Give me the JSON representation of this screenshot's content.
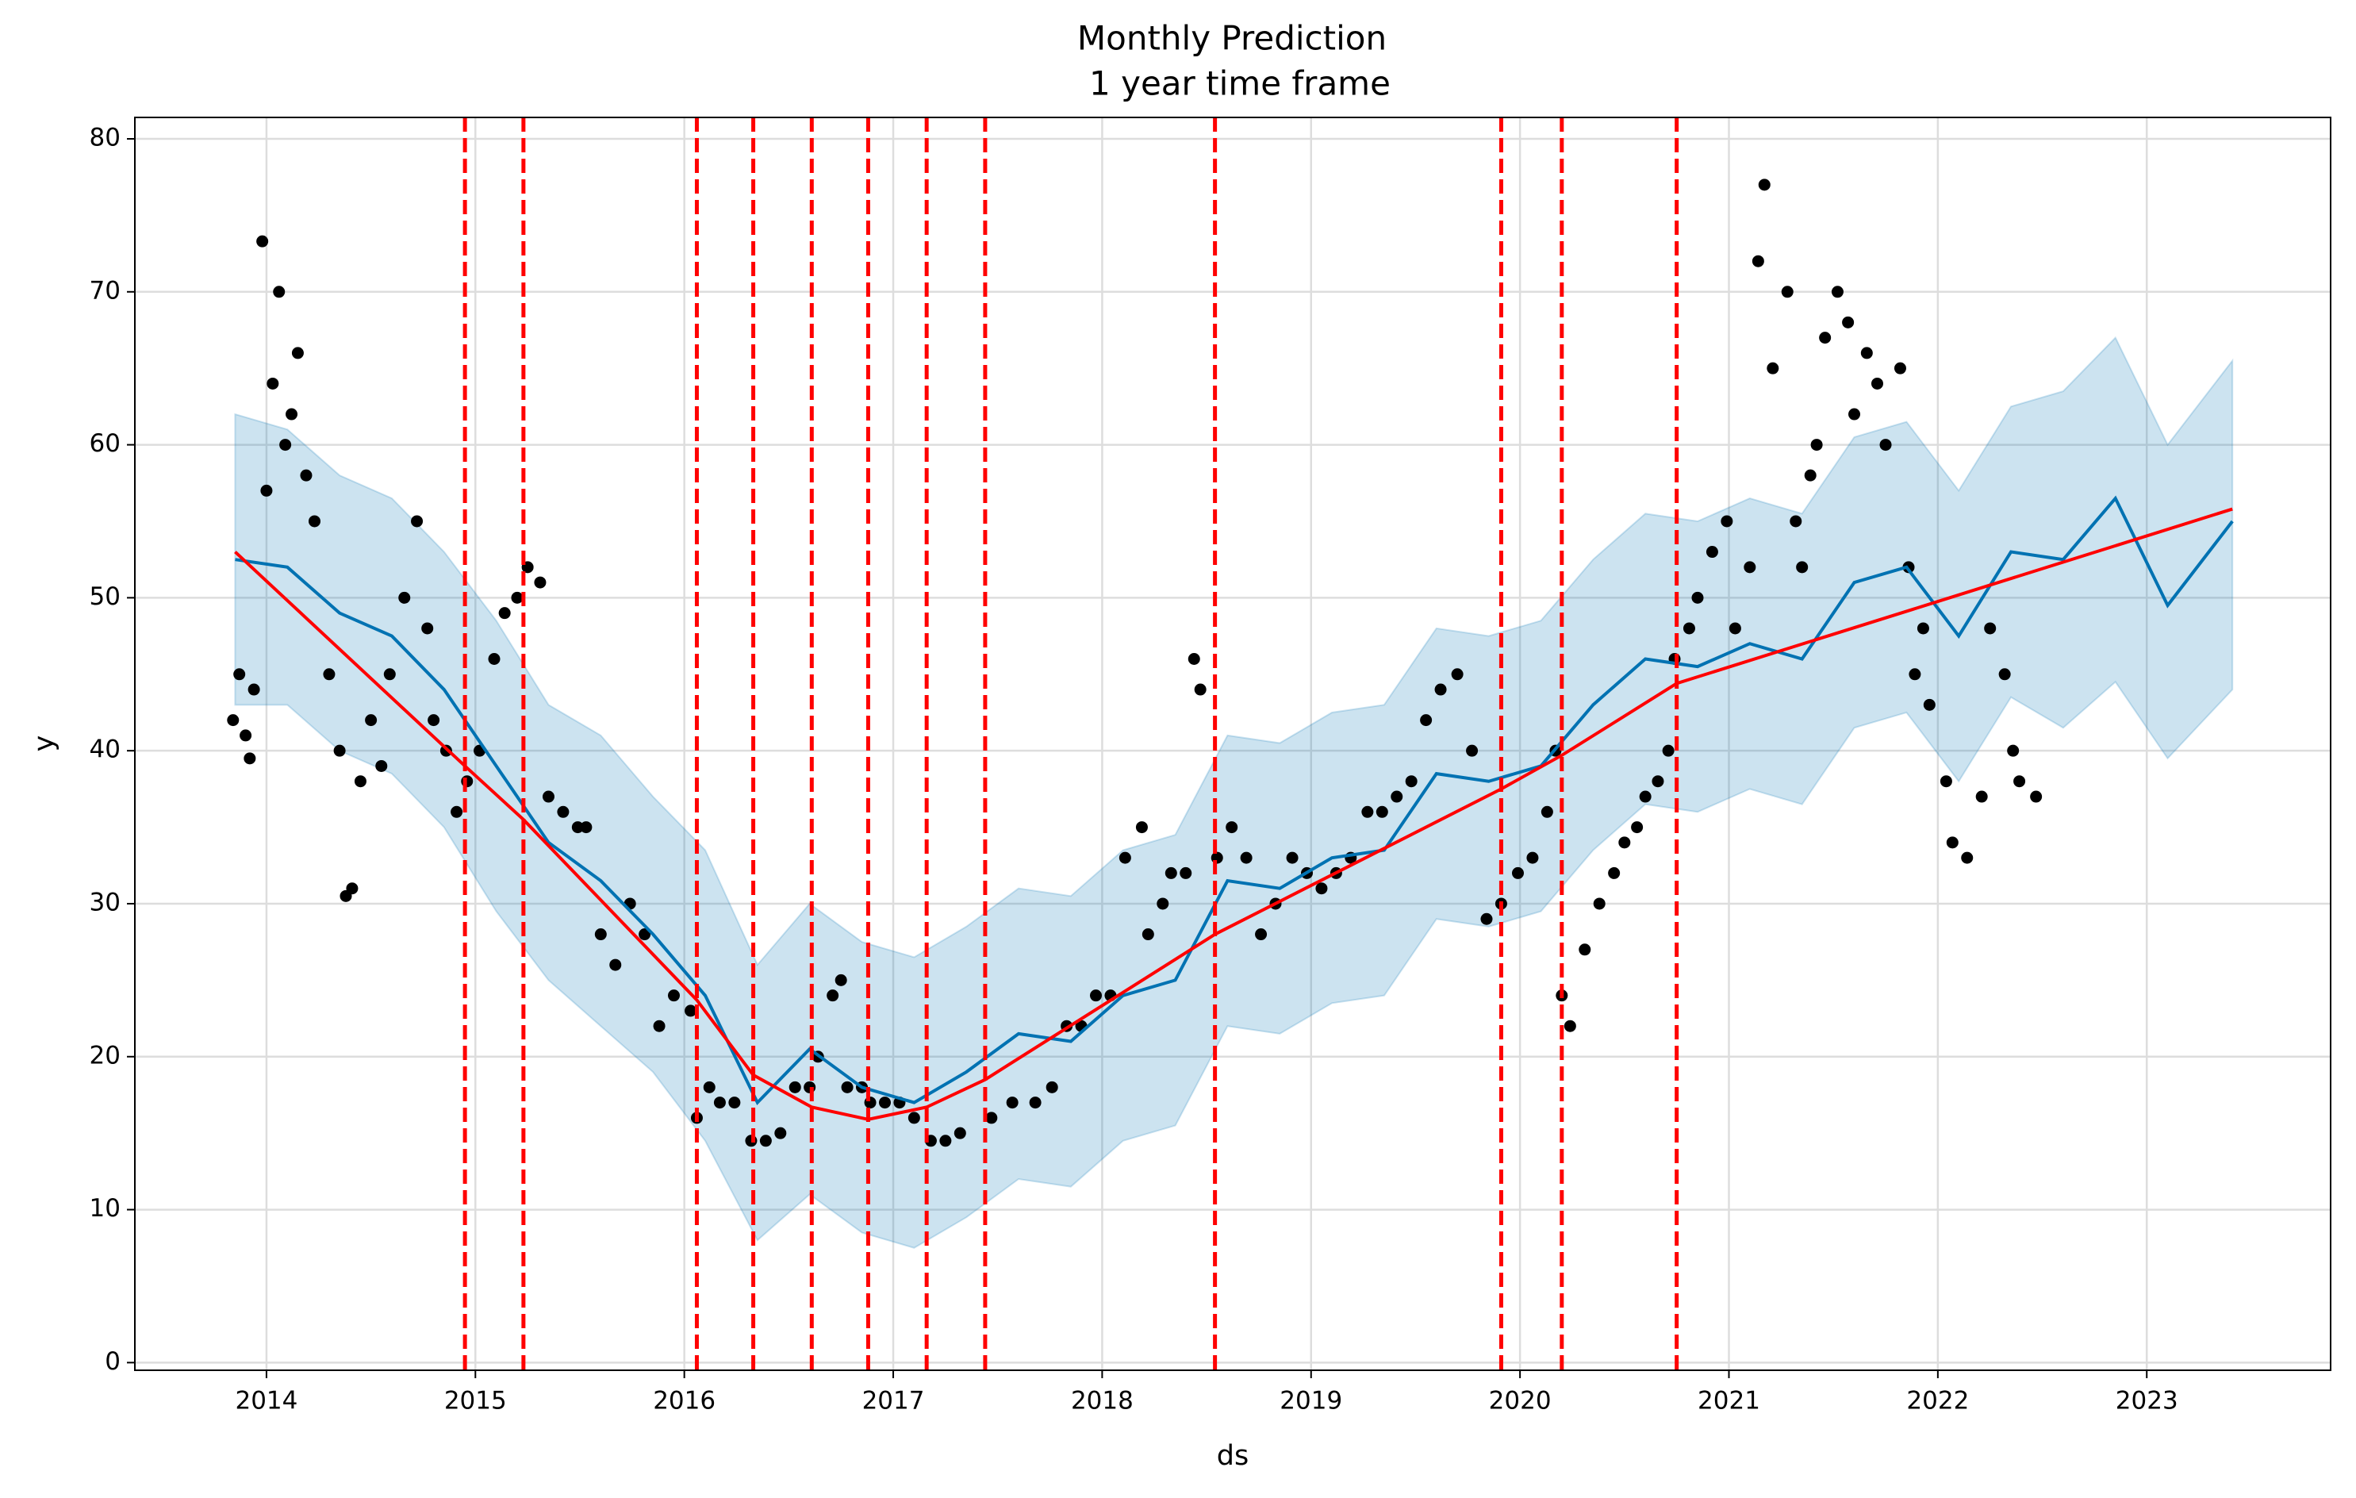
{
  "chart_data": {
    "type": "line",
    "title": "Monthly Prediction",
    "subtitle": "1 year time frame",
    "x_label": "ds",
    "y_label": "y",
    "xlim": [
      2013.37,
      2023.88
    ],
    "ylim": [
      -0.5,
      81.4
    ],
    "xticks": [
      2014,
      2015,
      2016,
      2017,
      2018,
      2019,
      2020,
      2021,
      2022,
      2023
    ],
    "yticks": [
      0,
      10,
      20,
      30,
      40,
      50,
      60,
      70,
      80
    ],
    "grid": true,
    "observed": {
      "color": "#000000",
      "x": [
        2013.84,
        2013.87,
        2013.9,
        2013.92,
        2013.94,
        2013.98,
        2014.0,
        2014.03,
        2014.06,
        2014.09,
        2014.12,
        2014.15,
        2014.19,
        2014.23,
        2014.3,
        2014.35,
        2014.38,
        2014.41,
        2014.45,
        2014.5,
        2014.55,
        2014.59,
        2014.66,
        2014.72,
        2014.77,
        2014.8,
        2014.86,
        2014.91,
        2014.96,
        2015.02,
        2015.09,
        2015.14,
        2015.2,
        2015.25,
        2015.31,
        2015.35,
        2015.42,
        2015.49,
        2015.53,
        2015.6,
        2015.67,
        2015.74,
        2015.81,
        2015.88,
        2015.95,
        2016.03,
        2016.06,
        2016.12,
        2016.17,
        2016.24,
        2016.32,
        2016.39,
        2016.46,
        2016.53,
        2016.6,
        2016.64,
        2016.71,
        2016.75,
        2016.78,
        2016.85,
        2016.89,
        2016.96,
        2017.03,
        2017.1,
        2017.18,
        2017.25,
        2017.32,
        2017.47,
        2017.57,
        2017.68,
        2017.76,
        2017.83,
        2017.9,
        2017.97,
        2018.04,
        2018.11,
        2018.19,
        2018.22,
        2018.29,
        2018.33,
        2018.4,
        2018.44,
        2018.47,
        2018.55,
        2018.62,
        2018.69,
        2018.76,
        2018.83,
        2018.91,
        2018.98,
        2019.05,
        2019.12,
        2019.19,
        2019.27,
        2019.34,
        2019.41,
        2019.48,
        2019.55,
        2019.62,
        2019.7,
        2019.77,
        2019.84,
        2019.91,
        2019.99,
        2020.06,
        2020.13,
        2020.17,
        2020.2,
        2020.24,
        2020.31,
        2020.38,
        2020.45,
        2020.5,
        2020.56,
        2020.6,
        2020.66,
        2020.71,
        2020.74,
        2020.81,
        2020.85,
        2020.92,
        2020.99,
        2021.03,
        2021.1,
        2021.14,
        2021.17,
        2021.21,
        2021.28,
        2021.32,
        2021.35,
        2021.39,
        2021.42,
        2021.46,
        2021.52,
        2021.57,
        2021.6,
        2021.66,
        2021.71,
        2021.75,
        2021.82,
        2021.86,
        2021.89,
        2021.93,
        2021.96,
        2022.04,
        2022.07,
        2022.14,
        2022.21,
        2022.25,
        2022.32,
        2022.36,
        2022.39,
        2022.47
      ],
      "values": [
        42,
        45,
        41,
        39.5,
        44,
        73.3,
        57,
        64,
        70,
        60,
        62,
        66,
        58,
        55,
        45,
        40,
        30.5,
        31,
        38,
        42,
        39,
        45,
        50,
        55,
        48,
        42,
        40,
        36,
        38,
        40,
        46,
        49,
        50,
        52,
        51,
        37,
        36,
        35,
        35,
        28,
        26,
        30,
        28,
        22,
        24,
        23,
        16,
        18,
        17,
        17,
        14.5,
        14.5,
        15,
        18,
        18,
        20,
        24,
        25,
        18,
        18,
        17,
        17,
        17,
        16,
        14.5,
        14.5,
        15,
        16,
        17,
        17,
        18,
        22,
        22,
        24,
        24,
        33,
        35,
        28,
        30,
        32,
        32,
        46,
        44,
        33,
        35,
        33,
        28,
        30,
        33,
        32,
        31,
        32,
        33,
        36,
        36,
        37,
        38,
        42,
        44,
        45,
        40,
        29,
        30,
        32,
        33,
        36,
        40,
        24,
        22,
        27,
        30,
        32,
        34,
        35,
        37,
        38,
        40,
        46,
        48,
        50,
        53,
        55,
        48,
        52,
        72,
        77,
        65,
        70,
        55,
        52,
        58,
        60,
        67,
        70,
        68,
        62,
        66,
        64,
        60,
        65,
        52,
        45,
        48,
        43,
        38,
        34,
        33,
        37,
        48,
        45,
        40,
        38,
        37
      ]
    },
    "forecast": {
      "color": "#0072B2",
      "x": [
        2013.85,
        2014.1,
        2014.35,
        2014.6,
        2014.85,
        2015.1,
        2015.35,
        2015.6,
        2015.85,
        2016.1,
        2016.35,
        2016.6,
        2016.85,
        2017.1,
        2017.35,
        2017.6,
        2017.85,
        2018.1,
        2018.35,
        2018.6,
        2018.85,
        2019.1,
        2019.35,
        2019.6,
        2019.85,
        2020.1,
        2020.35,
        2020.6,
        2020.85,
        2021.1,
        2021.35,
        2021.6,
        2021.85,
        2022.1,
        2022.35,
        2022.6,
        2022.85,
        2023.1,
        2023.41
      ],
      "values": [
        52.5,
        52,
        49,
        47.5,
        44,
        39,
        34,
        31.5,
        28,
        24,
        17,
        20.5,
        18,
        17,
        19,
        21.5,
        21,
        24,
        25,
        31.5,
        31,
        33,
        33.5,
        38.5,
        38,
        39,
        43,
        46,
        45.5,
        47,
        46,
        51,
        52,
        47.5,
        53,
        52.5,
        56.5,
        49.5,
        55
      ],
      "lower": [
        43,
        43,
        40,
        38.5,
        35,
        29.5,
        25,
        22,
        19,
        14.5,
        8,
        11,
        8.5,
        7.5,
        9.5,
        12,
        11.5,
        14.5,
        15.5,
        22,
        21.5,
        23.5,
        24,
        29,
        28.5,
        29.5,
        33.5,
        36.5,
        36,
        37.5,
        36.5,
        41.5,
        42.5,
        38,
        43.5,
        41.5,
        44.5,
        39.5,
        44
      ],
      "upper": [
        62,
        61,
        58,
        56.5,
        53,
        48.5,
        43,
        41,
        37,
        33.5,
        26,
        30,
        27.5,
        26.5,
        28.5,
        31,
        30.5,
        33.5,
        34.5,
        41,
        40.5,
        42.5,
        43,
        48,
        47.5,
        48.5,
        52.5,
        55.5,
        55,
        56.5,
        55.5,
        60.5,
        61.5,
        57,
        62.5,
        63.5,
        67,
        60,
        65.5
      ]
    },
    "trend": {
      "color": "#ff0000",
      "x": [
        2013.85,
        2014.95,
        2015.23,
        2016.06,
        2016.33,
        2016.61,
        2016.88,
        2017.16,
        2017.44,
        2018.54,
        2019.91,
        2020.2,
        2020.75,
        2023.41
      ],
      "values": [
        53,
        39,
        35.5,
        23.7,
        18.8,
        16.7,
        15.9,
        16.7,
        18.5,
        28,
        37.5,
        39.7,
        44.4,
        55.8
      ]
    },
    "changepoints": [
      2014.95,
      2015.23,
      2016.06,
      2016.33,
      2016.61,
      2016.88,
      2017.16,
      2017.44,
      2018.54,
      2019.91,
      2020.2,
      2020.75
    ],
    "changepoint_color": "#ff0000"
  }
}
